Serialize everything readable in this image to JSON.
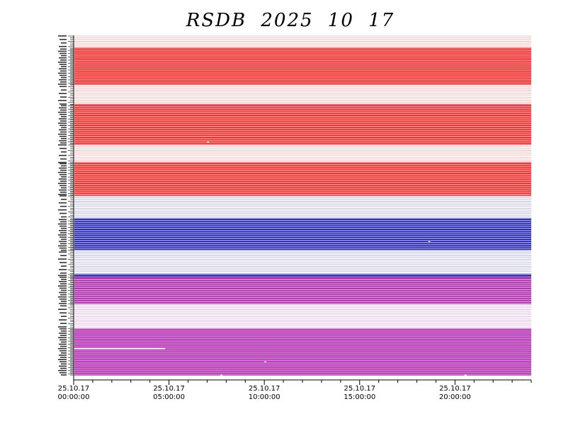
{
  "chart_data": {
    "type": "line",
    "title": "RSDB  2025  10  17",
    "xlabel": "",
    "ylabel": "",
    "x_ticks": [
      {
        "date": "25.10.17",
        "time": "00:00:00",
        "hour": 0
      },
      {
        "date": "25.10.17",
        "time": "05:00:00",
        "hour": 5
      },
      {
        "date": "25.10.17",
        "time": "10:00:00",
        "hour": 10
      },
      {
        "date": "25.10.17",
        "time": "15:00:00",
        "hour": 15
      },
      {
        "date": "25.10.17",
        "time": "20:00:00",
        "hour": 20
      }
    ],
    "xlim_hours": [
      0,
      24
    ],
    "minor_tick_interval_hours": 1,
    "bands": [
      {
        "color": "#ff0000",
        "light_color": "#f5b0b0",
        "pattern": "dddddddddddddddddddddddddddddddddddddddddddddddddddddddddddddddddddddddddddddddddddddddddddddddddddddddddddddddddddddddddddddddddddddddddddddddddddddddddd"
      },
      {
        "color": "#0000a0",
        "light_color": "#b0b0d8",
        "pattern": ""
      },
      {
        "color": "#a000a0",
        "light_color": "#e0b0e0",
        "pattern": ""
      }
    ],
    "gaps": [
      {
        "row": 87,
        "from_hour": 7.0,
        "to_hour": 7.1
      },
      {
        "row": 166,
        "from_hour": 18.6,
        "to_hour": 18.7
      },
      {
        "row": 250,
        "from_hour": 0.0,
        "to_hour": 4.8
      },
      {
        "row": 262,
        "from_hour": 10.0,
        "to_hour": 10.1
      },
      {
        "row": 312,
        "from_hour": 7.7,
        "to_hour": 7.8
      },
      {
        "row": 312,
        "from_hour": 20.5,
        "to_hour": 20.6
      }
    ],
    "grid": false,
    "legend": "none"
  }
}
